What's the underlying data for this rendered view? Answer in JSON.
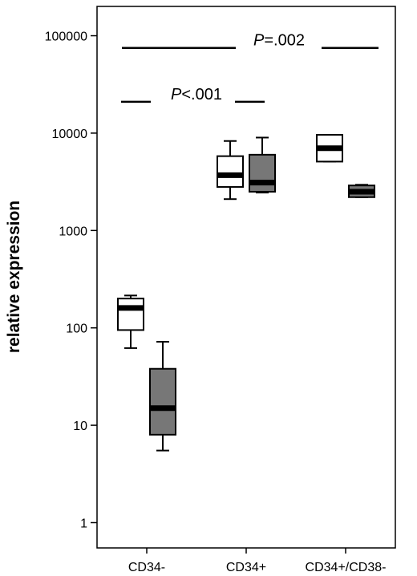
{
  "chart_data": {
    "type": "box",
    "title": "",
    "xlabel": "",
    "ylabel": "relative expression",
    "yscale": "log",
    "ylim": [
      0.55,
      200000
    ],
    "yticks": [
      {
        "value": 1,
        "label": "1"
      },
      {
        "value": 10,
        "label": "10"
      },
      {
        "value": 100,
        "label": "100"
      },
      {
        "value": 1000,
        "label": "1000"
      },
      {
        "value": 10000,
        "label": "10000"
      },
      {
        "value": 100000,
        "label": "100000"
      }
    ],
    "categories": [
      "CD34-",
      "CD34+",
      "CD34+/CD38-"
    ],
    "series": [
      {
        "fill": "#ffffff",
        "boxes": [
          {
            "category": "CD34-",
            "min": 62,
            "q1": 95,
            "median": 160,
            "q3": 200,
            "max": 215
          },
          {
            "category": "CD34+",
            "min": 2100,
            "q1": 2800,
            "median": 3700,
            "q3": 5800,
            "max": 8300
          },
          {
            "category": "CD34+/CD38-",
            "min": 5100,
            "q1": 5100,
            "median": 7000,
            "q3": 9600,
            "max": 9600
          }
        ]
      },
      {
        "fill": "#777777",
        "boxes": [
          {
            "category": "CD34-",
            "min": 5.5,
            "q1": 8,
            "median": 15,
            "q3": 38,
            "max": 72
          },
          {
            "category": "CD34+",
            "min": 2450,
            "q1": 2500,
            "median": 3100,
            "q3": 6000,
            "max": 9000
          },
          {
            "category": "CD34+/CD38-",
            "min": 2200,
            "q1": 2200,
            "median": 2500,
            "q3": 2900,
            "max": 2950
          }
        ]
      }
    ],
    "annotations": [
      {
        "p_letter": "P",
        "text": "=.002",
        "y": 75000
      },
      {
        "p_letter": "P",
        "text": "<.001",
        "y": 21000
      }
    ],
    "colors": {
      "axis": "#000000",
      "box_stroke": "#000000",
      "light_box": "#ffffff",
      "dark_box": "#777777"
    }
  }
}
